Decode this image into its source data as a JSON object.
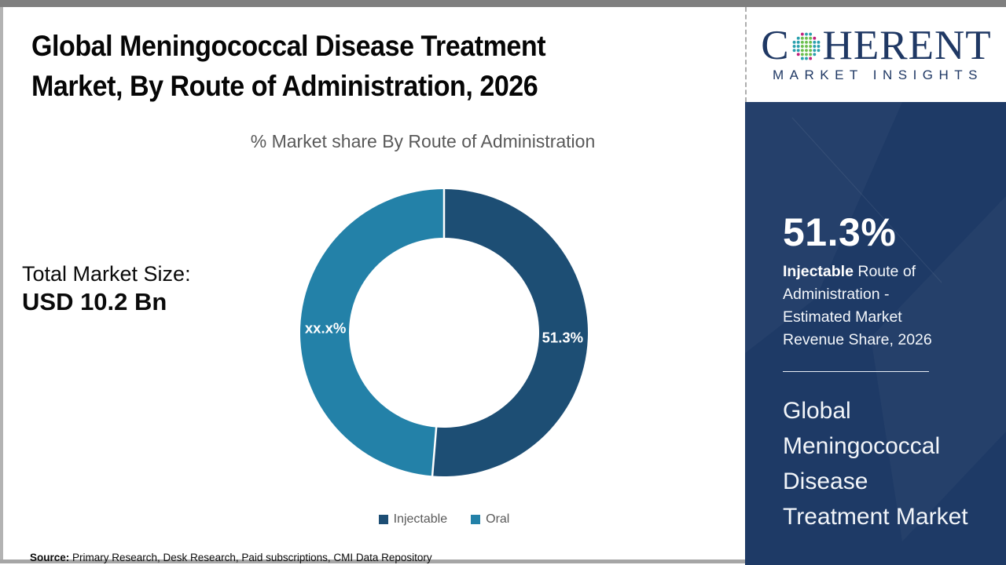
{
  "colors": {
    "injectable_slice": "#1d4e74",
    "oral_slice": "#2381a8",
    "sidebar_panel_bg": "#1e3a66",
    "logo_navy": "#1f3864",
    "muted_text": "#595959",
    "globe_teal": "#2aa0ad",
    "globe_green": "#6cbf4e",
    "globe_magenta": "#c0217c"
  },
  "header": {
    "title_lines": [
      "Global Meningococcal Disease Treatment",
      "Market, By Route of Administration, 2026"
    ]
  },
  "chart_area": {
    "subtitle": "% Market share By Route of Administration",
    "total_label": "Total Market Size:",
    "total_value": "USD 10.2 Bn"
  },
  "chart_data": {
    "type": "pie",
    "donut": true,
    "title": "% Market share By Route of Administration",
    "labels": [
      "Injectable",
      "Oral"
    ],
    "values": [
      51.3,
      48.7
    ],
    "value_labels": [
      "51.3%",
      "xx.x%"
    ],
    "colors": [
      "#1d4e74",
      "#2381a8"
    ],
    "start_angle_deg": 0,
    "direction": "clockwise",
    "legend_position": "bottom"
  },
  "source_line": {
    "label": "Source:",
    "text": " Primary Research, Desk Research, Paid subscriptions, CMI Data Repository"
  },
  "sidebar": {
    "logo": {
      "prefix": "C",
      "suffix": "HERENT",
      "tagline": "MARKET INSIGHTS"
    },
    "stat": {
      "value": "51.3%",
      "highlight": "Injectable",
      "description": " Route of Administration - Estimated Market Revenue Share, 2026"
    },
    "market_name": "Global Meningococcal Disease Treatment Market"
  }
}
